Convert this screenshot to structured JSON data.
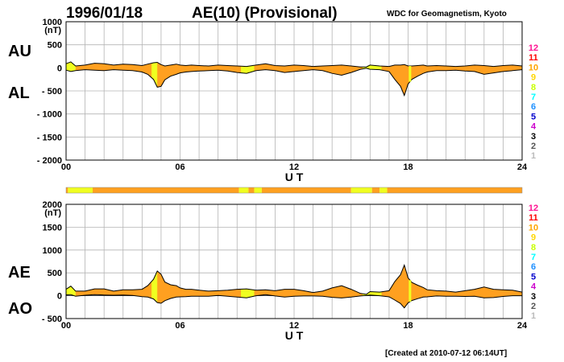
{
  "header": {
    "date": "1996/01/18",
    "title": "AE(10) (Provisional)",
    "source": "WDC for Geomagnetism, Kyoto"
  },
  "footer": {
    "created": "[Created at 2010-07-12 06:14UT]"
  },
  "colors": {
    "fill_main": "#ffa020",
    "fill_low_stations": "#f0ff20",
    "grid": "#b4b4b4",
    "station_count_colors": {
      "12": "#ff1493",
      "11": "#ff0000",
      "10": "#ffa500",
      "9": "#ffd700",
      "8": "#c8ff00",
      "7": "#00ffff",
      "6": "#1e90ff",
      "5": "#0000cd",
      "4": "#cc00cc",
      "3": "#000000",
      "2": "#555555",
      "1": "#bbbbbb"
    }
  },
  "legend": {
    "station_counts": [
      "12",
      "11",
      "10",
      "9",
      "8",
      "7",
      "6",
      "5",
      "4",
      "3",
      "2",
      "1"
    ]
  },
  "chart_data": [
    {
      "type": "area",
      "panel": "top",
      "unit": "(nT)",
      "series_labels": [
        "AU",
        "AL"
      ],
      "xlabel": "U T",
      "xlim": [
        0,
        24
      ],
      "x_ticks": [
        "00",
        "06",
        "12",
        "18",
        "24"
      ],
      "ylim": [
        -2000,
        1000
      ],
      "y_ticks": [
        "1000",
        "500",
        "0",
        "- 500",
        "- 1000",
        "- 1500",
        "- 2000"
      ],
      "y_tick_values": [
        1000,
        500,
        0,
        -500,
        -1000,
        -1500,
        -2000
      ],
      "grid": true,
      "x": [
        0,
        0.25,
        0.5,
        1,
        1.5,
        2,
        2.5,
        3,
        3.5,
        4,
        4.3,
        4.6,
        4.8,
        5,
        5.2,
        5.5,
        5.8,
        6,
        6.3,
        6.6,
        7,
        7.5,
        8,
        8.5,
        9,
        9.5,
        10,
        10.5,
        11,
        11.5,
        12,
        12.5,
        13,
        13.5,
        14,
        14.5,
        15,
        15.5,
        15.8,
        16,
        16.5,
        17,
        17.3,
        17.6,
        17.8,
        18,
        18.2,
        18.5,
        18.8,
        19,
        19.5,
        20,
        20.5,
        21,
        21.5,
        22,
        22.5,
        23,
        23.5,
        24
      ],
      "AU": [
        90,
        130,
        40,
        60,
        100,
        90,
        60,
        80,
        70,
        50,
        80,
        110,
        120,
        70,
        40,
        60,
        80,
        60,
        50,
        60,
        50,
        40,
        60,
        50,
        40,
        30,
        60,
        90,
        50,
        40,
        60,
        50,
        30,
        40,
        50,
        60,
        40,
        20,
        20,
        60,
        40,
        30,
        60,
        60,
        70,
        40,
        40,
        50,
        60,
        40,
        50,
        40,
        30,
        40,
        60,
        50,
        30,
        50,
        60,
        40
      ],
      "AL": [
        -50,
        -80,
        -60,
        -40,
        -50,
        -60,
        -40,
        -50,
        -60,
        -90,
        -140,
        -250,
        -420,
        -400,
        -260,
        -180,
        -140,
        -110,
        -90,
        -80,
        -70,
        -60,
        -50,
        -70,
        -100,
        -120,
        -60,
        -40,
        -60,
        -100,
        -80,
        -60,
        -40,
        -60,
        -120,
        -160,
        -100,
        -30,
        -10,
        -30,
        -40,
        -80,
        -250,
        -400,
        -600,
        -350,
        -250,
        -180,
        -120,
        -90,
        -60,
        -60,
        -50,
        -70,
        -80,
        -140,
        -110,
        -80,
        -60,
        -40
      ],
      "low_station_segments": [
        [
          0,
          0.5
        ],
        [
          4.5,
          4.8
        ],
        [
          9.2,
          9.9
        ],
        [
          15.6,
          16.6
        ]
      ],
      "marker_x": 18.1
    },
    {
      "type": "bar",
      "panel": "strip",
      "description_segments": [
        [
          0,
          0.1,
          "fill_main"
        ],
        [
          0.1,
          1.4,
          "fill_low_stations"
        ],
        [
          1.4,
          9.1,
          "fill_main"
        ],
        [
          9.1,
          9.6,
          "fill_low_stations"
        ],
        [
          9.6,
          9.9,
          "fill_main"
        ],
        [
          9.9,
          10.3,
          "fill_low_stations"
        ],
        [
          10.3,
          15.0,
          "fill_main"
        ],
        [
          15.0,
          16.1,
          "fill_low_stations"
        ],
        [
          16.1,
          16.5,
          "fill_main"
        ],
        [
          16.5,
          16.9,
          "fill_low_stations"
        ],
        [
          16.9,
          24,
          "fill_main"
        ]
      ]
    },
    {
      "type": "area",
      "panel": "bottom",
      "unit": "(nT)",
      "series_labels": [
        "AE",
        "AO"
      ],
      "xlabel": "U T",
      "xlim": [
        0,
        24
      ],
      "x_ticks": [
        "00",
        "06",
        "12",
        "18",
        "24"
      ],
      "ylim": [
        -500,
        2000
      ],
      "y_ticks": [
        "2000",
        "1500",
        "1000",
        "500",
        "0",
        "- 500"
      ],
      "y_tick_values": [
        2000,
        1500,
        1000,
        500,
        0,
        -500
      ],
      "grid": true,
      "x": [
        0,
        0.25,
        0.5,
        1,
        1.5,
        2,
        2.5,
        3,
        3.5,
        4,
        4.3,
        4.6,
        4.8,
        5,
        5.2,
        5.5,
        5.8,
        6,
        6.3,
        6.6,
        7,
        7.5,
        8,
        8.5,
        9,
        9.5,
        10,
        10.5,
        11,
        11.5,
        12,
        12.5,
        13,
        13.5,
        14,
        14.5,
        15,
        15.5,
        15.8,
        16,
        16.5,
        17,
        17.3,
        17.6,
        17.8,
        18,
        18.2,
        18.5,
        18.8,
        19,
        19.5,
        20,
        20.5,
        21,
        21.5,
        22,
        22.5,
        23,
        23.5,
        24
      ],
      "AE": [
        140,
        210,
        100,
        100,
        150,
        150,
        100,
        130,
        130,
        140,
        220,
        360,
        540,
        470,
        300,
        240,
        220,
        170,
        140,
        140,
        120,
        100,
        110,
        120,
        140,
        150,
        120,
        130,
        110,
        140,
        140,
        110,
        70,
        100,
        170,
        220,
        140,
        50,
        30,
        90,
        80,
        110,
        310,
        460,
        670,
        390,
        290,
        230,
        180,
        130,
        110,
        100,
        80,
        110,
        140,
        190,
        140,
        130,
        120,
        80
      ],
      "AO": [
        20,
        25,
        -10,
        10,
        25,
        15,
        10,
        15,
        5,
        -20,
        -30,
        -70,
        -150,
        -165,
        -110,
        -60,
        -30,
        -25,
        -20,
        -10,
        -10,
        -10,
        5,
        -10,
        -30,
        -45,
        0,
        25,
        -5,
        -30,
        -10,
        -5,
        -5,
        -10,
        -35,
        -50,
        -30,
        -5,
        5,
        15,
        0,
        -25,
        -95,
        -170,
        -265,
        -155,
        -105,
        -65,
        -30,
        -25,
        -5,
        -10,
        -10,
        -15,
        -10,
        -45,
        -40,
        -15,
        0,
        0
      ],
      "low_station_segments": [
        [
          0,
          0.5
        ],
        [
          4.5,
          4.8
        ],
        [
          9.2,
          9.9
        ],
        [
          15.6,
          16.6
        ]
      ],
      "marker_x": 18.1
    }
  ]
}
